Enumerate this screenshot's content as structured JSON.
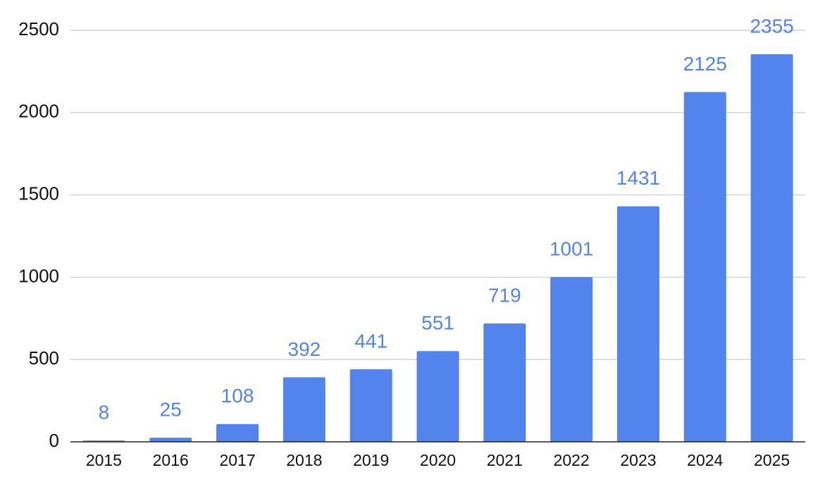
{
  "chart_data": {
    "type": "bar",
    "title": "",
    "xlabel": "",
    "ylabel": "",
    "categories": [
      "2015",
      "2016",
      "2017",
      "2018",
      "2019",
      "2020",
      "2021",
      "2022",
      "2023",
      "2024",
      "2025"
    ],
    "values": [
      8,
      25,
      108,
      392,
      441,
      551,
      719,
      1001,
      1431,
      2125,
      2355
    ],
    "ylim": [
      0,
      2500
    ],
    "yticks": [
      0,
      500,
      1000,
      1500,
      2000,
      2500
    ],
    "grid": true,
    "legend": "none",
    "data_labels": true,
    "colors": {
      "bar": "#5383ec",
      "data_label": "#5383ec",
      "grid": "#d0d0d0",
      "axis": "#222222",
      "tick_label": "#111111"
    }
  }
}
